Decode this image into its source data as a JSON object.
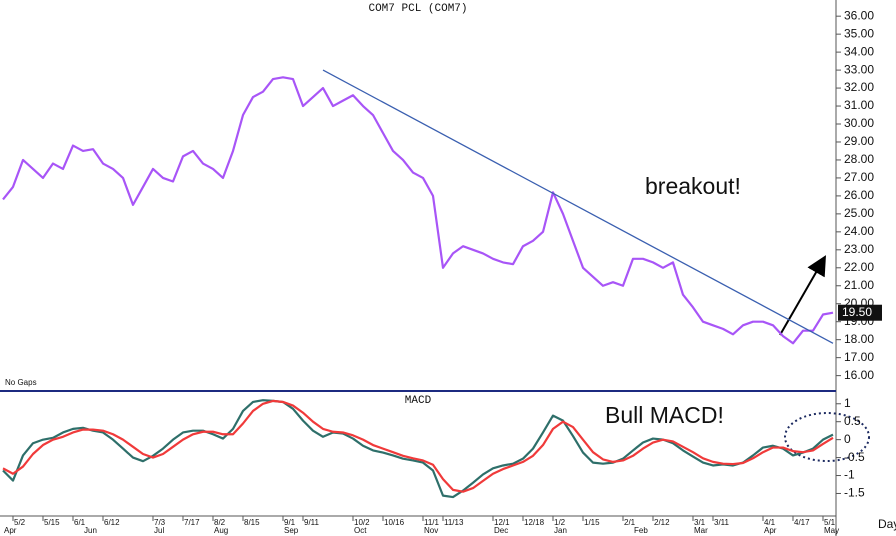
{
  "chart_data": [
    {
      "type": "line",
      "title": "COM7 PCL (COM7)",
      "xlabel": "Day",
      "note": "No Gaps",
      "annotation": "breakout!",
      "categories": [
        null,
        "5/2",
        null,
        null,
        "5/15",
        null,
        null,
        "6/1",
        null,
        null,
        "6/12",
        null,
        null,
        null,
        null,
        "7/3",
        null,
        null,
        "7/17",
        null,
        null,
        "8/2",
        null,
        null,
        "8/15",
        null,
        null,
        null,
        "9/1",
        null,
        "9/11",
        null,
        null,
        null,
        null,
        "10/2",
        null,
        null,
        "10/16",
        null,
        null,
        null,
        "11/1",
        null,
        "11/13",
        null,
        null,
        null,
        null,
        "12/1",
        null,
        null,
        "12/18",
        null,
        null,
        "1/2",
        null,
        null,
        "1/15",
        null,
        null,
        null,
        "2/1",
        null,
        null,
        "2/12",
        null,
        null,
        null,
        "3/1",
        null,
        "3/11",
        null,
        null,
        null,
        null,
        "4/1",
        null,
        null,
        "4/17",
        null,
        null,
        "5/1",
        null
      ],
      "months": [
        "Apr",
        null,
        null,
        null,
        null,
        null,
        null,
        null,
        "Jun",
        null,
        null,
        null,
        null,
        null,
        null,
        "Jul",
        null,
        null,
        null,
        null,
        null,
        "Aug",
        null,
        null,
        null,
        null,
        null,
        null,
        "Sep",
        null,
        null,
        null,
        null,
        null,
        null,
        "Oct",
        null,
        null,
        null,
        null,
        null,
        null,
        "Nov",
        null,
        null,
        null,
        null,
        null,
        null,
        "Dec",
        null,
        null,
        null,
        null,
        null,
        "Jan",
        null,
        null,
        null,
        null,
        null,
        null,
        null,
        "Feb",
        null,
        null,
        null,
        null,
        null,
        "Mar",
        null,
        null,
        null,
        null,
        null,
        null,
        "Apr",
        null,
        null,
        null,
        null,
        null,
        "May",
        null
      ],
      "series": [
        {
          "color": "#a855f7",
          "values": [
            25.8,
            26.5,
            28.0,
            27.5,
            27.0,
            27.8,
            27.5,
            28.8,
            28.5,
            28.6,
            27.8,
            27.5,
            27.0,
            25.5,
            26.5,
            27.5,
            27.0,
            26.8,
            28.2,
            28.5,
            27.8,
            27.5,
            27.0,
            28.5,
            30.5,
            31.5,
            31.8,
            32.5,
            32.6,
            32.5,
            31.0,
            31.5,
            32.0,
            31.0,
            31.3,
            31.6,
            31.0,
            30.5,
            29.5,
            28.5,
            28.0,
            27.3,
            27.0,
            26.0,
            22.0,
            22.8,
            23.2,
            23.0,
            22.8,
            22.5,
            22.3,
            22.2,
            23.2,
            23.5,
            24.0,
            26.2,
            25.0,
            23.5,
            22.0,
            21.5,
            21.0,
            21.2,
            21.0,
            22.5,
            22.5,
            22.3,
            22.0,
            22.3,
            20.5,
            19.8,
            19.0,
            18.8,
            18.6,
            18.3,
            18.8,
            19.0,
            19.0,
            18.8,
            18.2,
            17.8,
            18.5,
            18.5,
            19.4,
            19.5
          ]
        }
      ],
      "trendline": {
        "color": "#3a5fb0",
        "x": [
          32,
          83
        ],
        "values": [
          33.0,
          17.8
        ]
      },
      "last_value": {
        "value": 19.5,
        "label": "19.50"
      },
      "ylim": [
        15.2,
        36.9
      ],
      "yticks": [
        {
          "value": 16,
          "label": "16.00"
        },
        {
          "value": 17,
          "label": "17.00"
        },
        {
          "value": 18,
          "label": "18.00"
        },
        {
          "value": 19,
          "label": "19.00"
        },
        {
          "value": 20,
          "label": "20.00"
        },
        {
          "value": 21,
          "label": "21.00"
        },
        {
          "value": 22,
          "label": "22.00"
        },
        {
          "value": 23,
          "label": "23.00"
        },
        {
          "value": 24,
          "label": "24.00"
        },
        {
          "value": 25,
          "label": "25.00"
        },
        {
          "value": 26,
          "label": "26.00"
        },
        {
          "value": 27,
          "label": "27.00"
        },
        {
          "value": 28,
          "label": "28.00"
        },
        {
          "value": 29,
          "label": "29.00"
        },
        {
          "value": 30,
          "label": "30.00"
        },
        {
          "value": 31,
          "label": "31.00"
        },
        {
          "value": 32,
          "label": "32.00"
        },
        {
          "value": 33,
          "label": "33.00"
        },
        {
          "value": 34,
          "label": "34.00"
        },
        {
          "value": 35,
          "label": "35.00"
        },
        {
          "value": 36,
          "label": "36.00"
        }
      ],
      "grid": false
    },
    {
      "type": "line",
      "title": "MACD",
      "annotation": "Bull MACD!",
      "series": [
        {
          "color": "#2e6f6a",
          "values": [
            -0.86,
            -1.14,
            -0.44,
            -0.1,
            0,
            0.05,
            0.2,
            0.3,
            0.33,
            0.25,
            0.2,
            0,
            -0.25,
            -0.5,
            -0.6,
            -0.45,
            -0.25,
            0,
            0.2,
            0.25,
            0.25,
            0.15,
            0.03,
            0.3,
            0.8,
            1.05,
            1.1,
            1.08,
            1.05,
            0.86,
            0.53,
            0.25,
            0.08,
            0.2,
            0.17,
            0.03,
            -0.17,
            -0.3,
            -0.36,
            -0.44,
            -0.53,
            -0.58,
            -0.64,
            -0.86,
            -1.56,
            -1.6,
            -1.42,
            -1.2,
            -0.97,
            -0.8,
            -0.72,
            -0.67,
            -0.53,
            -0.25,
            0.2,
            0.67,
            0.53,
            0.1,
            -0.36,
            -0.64,
            -0.67,
            -0.64,
            -0.53,
            -0.3,
            -0.08,
            0.03,
            0,
            -0.1,
            -0.3,
            -0.47,
            -0.64,
            -0.72,
            -0.69,
            -0.72,
            -0.64,
            -0.44,
            -0.22,
            -0.17,
            -0.25,
            -0.44,
            -0.36,
            -0.25,
            0,
            0.14
          ]
        },
        {
          "color": "#f03a3a",
          "values": [
            -0.8,
            -0.95,
            -0.75,
            -0.4,
            -0.15,
            0,
            0.08,
            0.2,
            0.28,
            0.28,
            0.25,
            0.15,
            0,
            -0.2,
            -0.4,
            -0.5,
            -0.4,
            -0.2,
            0,
            0.15,
            0.22,
            0.22,
            0.15,
            0.15,
            0.45,
            0.8,
            1.0,
            1.08,
            1.05,
            0.95,
            0.75,
            0.5,
            0.3,
            0.22,
            0.2,
            0.12,
            0,
            -0.15,
            -0.25,
            -0.35,
            -0.45,
            -0.52,
            -0.58,
            -0.7,
            -1.1,
            -1.4,
            -1.45,
            -1.35,
            -1.15,
            -0.95,
            -0.82,
            -0.72,
            -0.62,
            -0.45,
            -0.15,
            0.3,
            0.5,
            0.35,
            0,
            -0.35,
            -0.55,
            -0.62,
            -0.58,
            -0.45,
            -0.25,
            -0.08,
            0,
            -0.05,
            -0.2,
            -0.35,
            -0.52,
            -0.62,
            -0.67,
            -0.68,
            -0.65,
            -0.52,
            -0.35,
            -0.22,
            -0.22,
            -0.32,
            -0.35,
            -0.3,
            -0.12,
            0.05
          ]
        }
      ],
      "ylim": [
        -2.1,
        1.3
      ],
      "yticks": [
        1,
        0.5,
        0,
        -0.5,
        -1,
        -1.5
      ],
      "grid": false
    }
  ]
}
